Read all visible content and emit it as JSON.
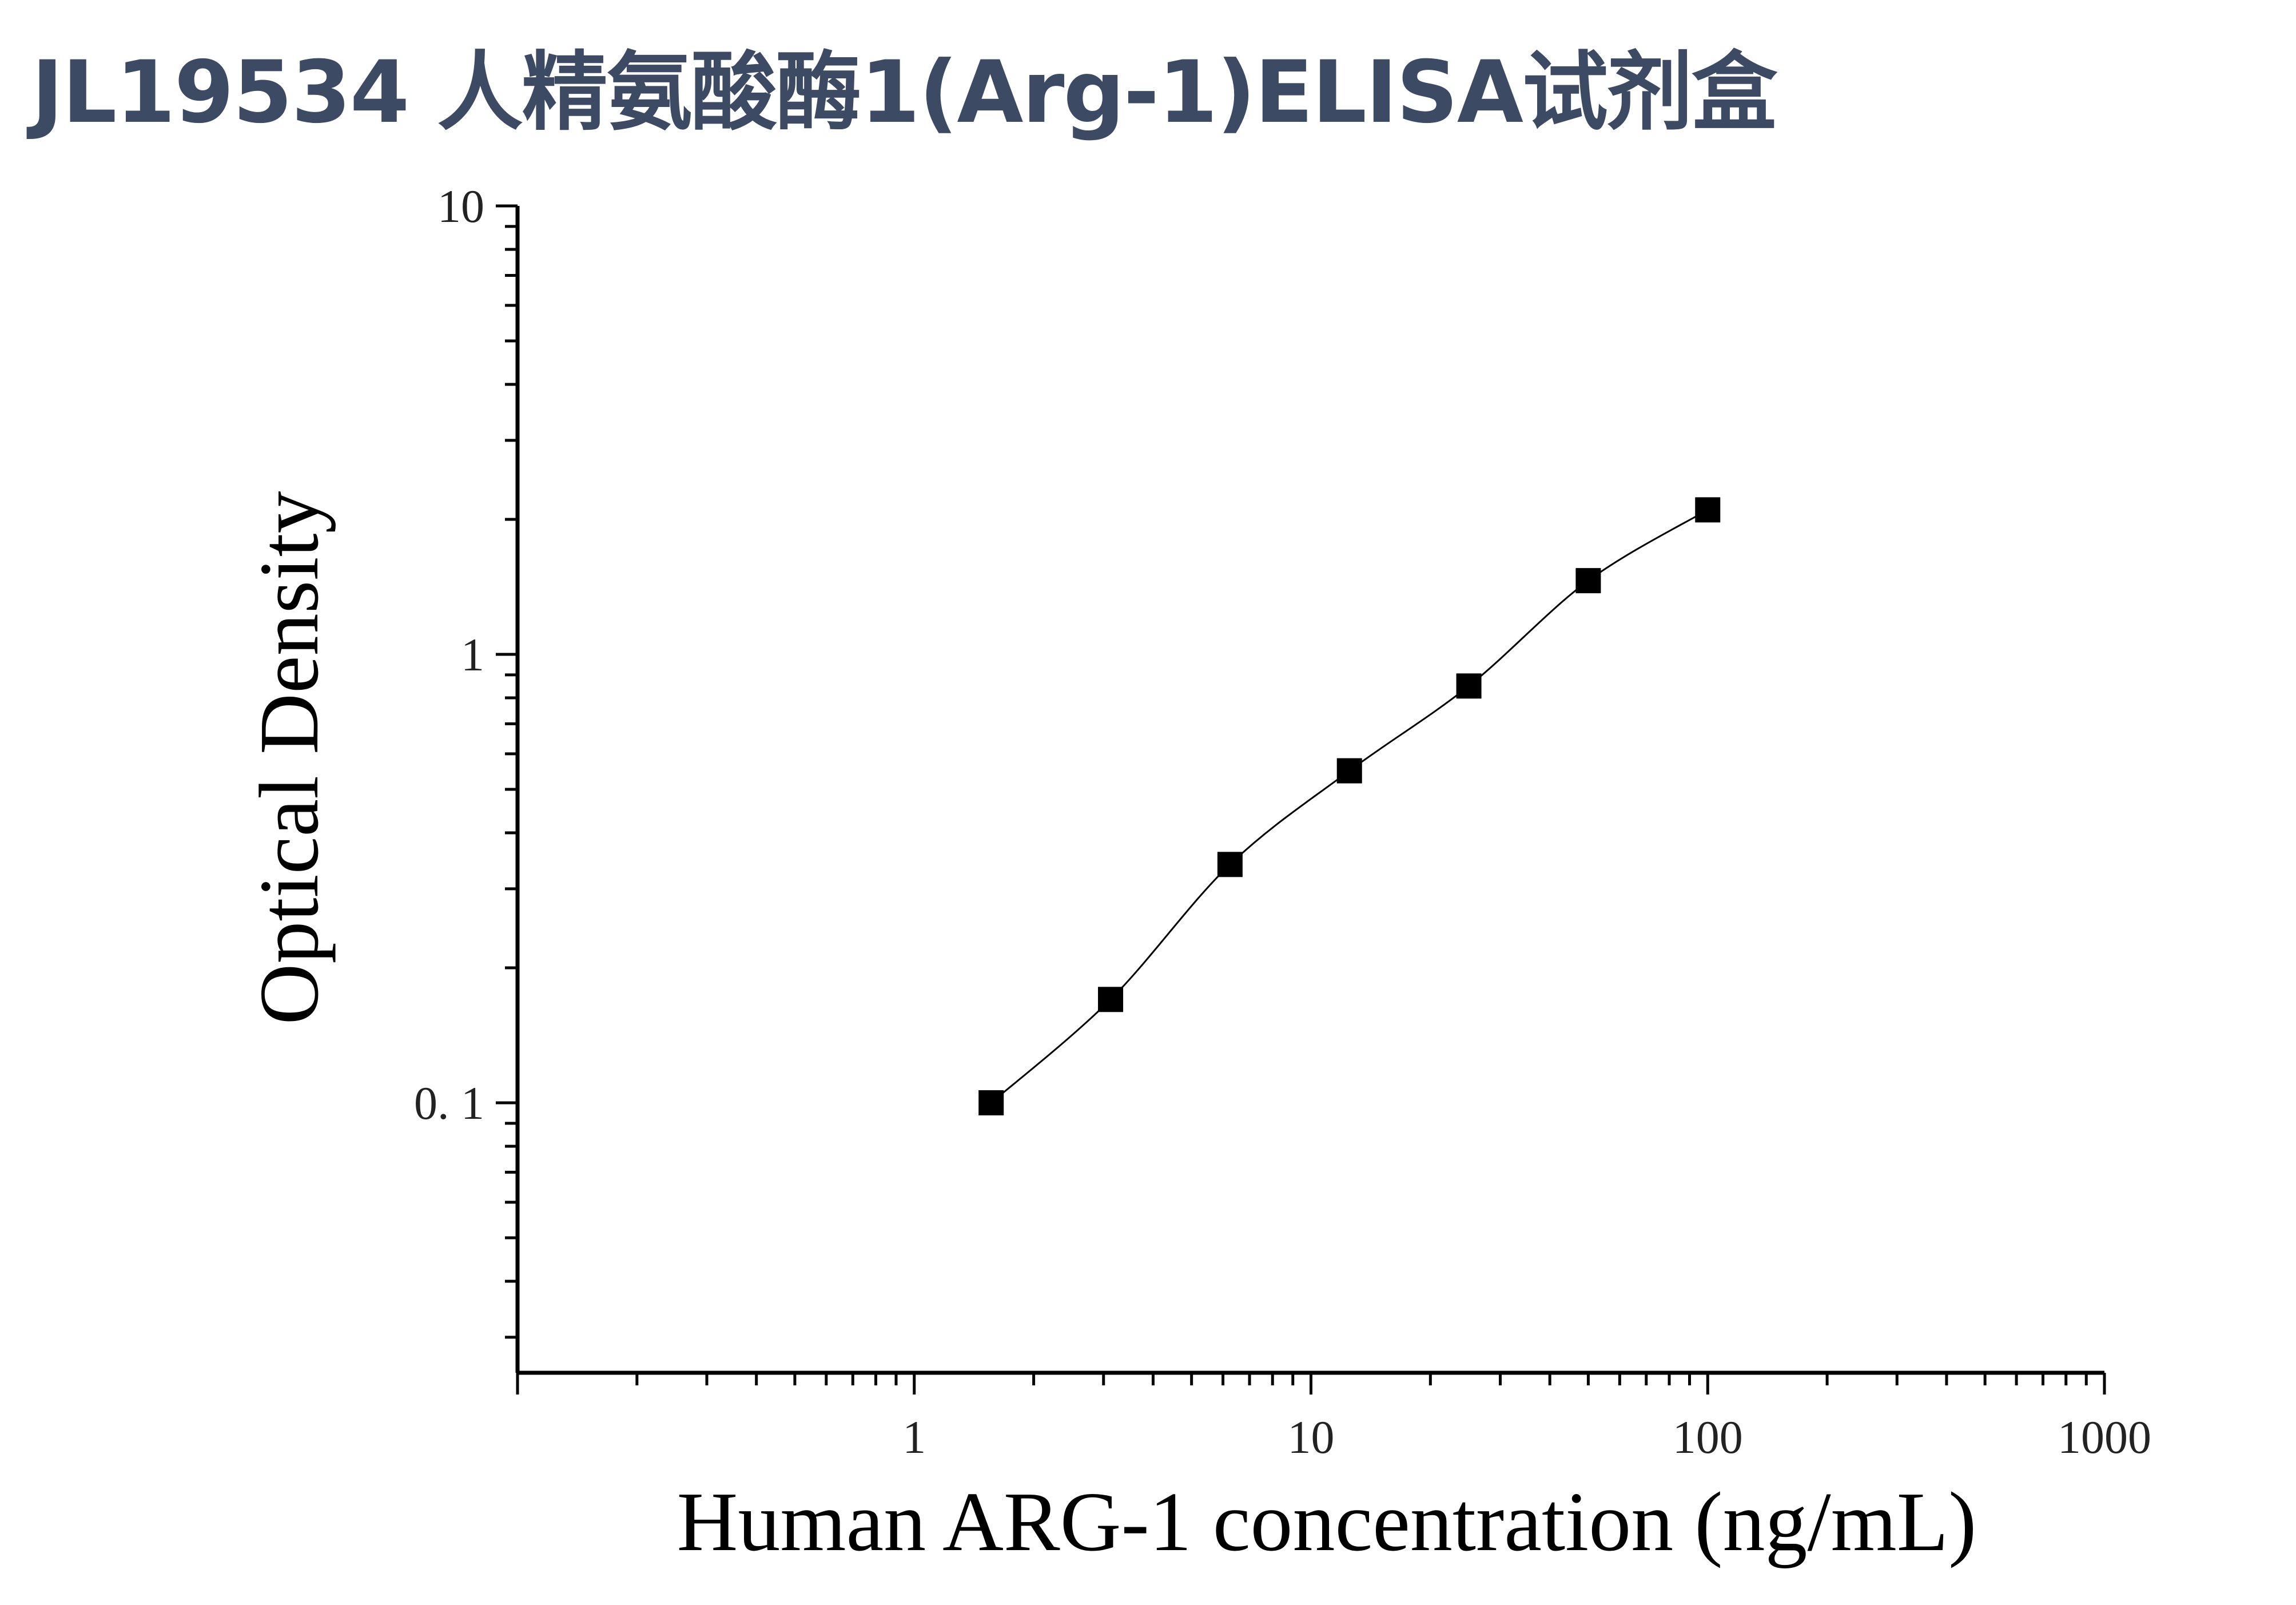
{
  "title": "JL19534 人精氨酸酶1(Arg-1)ELISA试剂盒",
  "colors": {
    "title": "#3d4a63",
    "axis": "#000000",
    "marker": "#000000",
    "curve": "#000000"
  },
  "chart_data": {
    "type": "scatter",
    "xlabel": "Human ARG-1 concentration (ng/mL)",
    "ylabel": "Optical Density",
    "xscale": "log",
    "yscale": "log",
    "xlim": [
      0.1,
      1000
    ],
    "ylim": [
      0.025,
      10
    ],
    "xticks": [
      {
        "value": 1,
        "label": "1"
      },
      {
        "value": 10,
        "label": "10"
      },
      {
        "value": 100,
        "label": "100"
      },
      {
        "value": 1000,
        "label": "1000"
      }
    ],
    "yticks": [
      {
        "value": 0.1,
        "label": "0. 1"
      },
      {
        "value": 1,
        "label": "1"
      },
      {
        "value": 10,
        "label": "10"
      }
    ],
    "grid": false,
    "marker": "square",
    "series": [
      {
        "x": [
          1.5625,
          3.125,
          6.25,
          12.5,
          25,
          50,
          100
        ],
        "y": [
          0.1,
          0.17,
          0.34,
          0.55,
          0.85,
          1.46,
          2.1
        ]
      }
    ],
    "fit_curve": true
  }
}
